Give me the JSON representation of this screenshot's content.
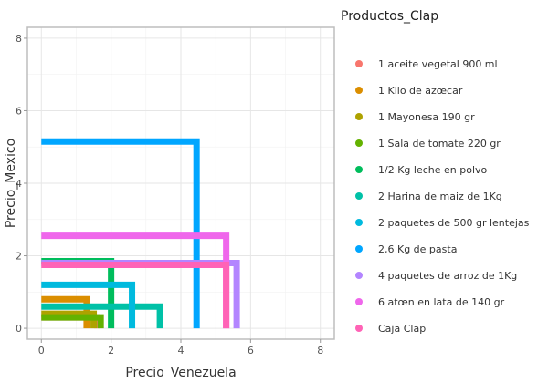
{
  "chart_data": {
    "type": "scatter",
    "subtype": "l-shaped segments (x from 0 to value, drop from y value to 0)",
    "xlabel": "Precio_Venezuela",
    "ylabel": "Precio_Mexico",
    "xlim": [
      -0.4,
      8.4
    ],
    "ylim": [
      -0.3,
      8.3
    ],
    "x_ticks": [
      0,
      2,
      4,
      6,
      8
    ],
    "y_ticks": [
      0,
      2,
      4,
      6,
      8
    ],
    "grid": true,
    "legend_title": "Productos_Clap",
    "legend_position": "right",
    "series": [
      {
        "name": "1 aceite vegetal 900 ml",
        "color": "#F8766D",
        "x": 1.6,
        "y": 0.3
      },
      {
        "name": "1 Kilo de azœcar",
        "color": "#DB8E00",
        "x": 1.3,
        "y": 0.8
      },
      {
        "name": "1 Mayonesa 190 gr",
        "color": "#AEA200",
        "x": 1.5,
        "y": 0.4
      },
      {
        "name": "1 Sala de tomate 220 gr",
        "color": "#64B200",
        "x": 1.7,
        "y": 0.3
      },
      {
        "name": "1/2 Kg leche en polvo",
        "color": "#00BD5C",
        "x": 2.0,
        "y": 1.85
      },
      {
        "name": "2 Harina de maiz de 1Kg",
        "color": "#00C1A7",
        "x": 3.4,
        "y": 0.6
      },
      {
        "name": "2 paquetes de 500 gr lentejas",
        "color": "#00BADE",
        "x": 2.6,
        "y": 1.2
      },
      {
        "name": "2,6 Kg de pasta",
        "color": "#00A6FF",
        "x": 4.45,
        "y": 5.15
      },
      {
        "name": "4 paquetes de arroz de 1Kg",
        "color": "#B385FF",
        "x": 5.6,
        "y": 1.8
      },
      {
        "name": "6 atœn en lata de 140 gr",
        "color": "#EF67EB",
        "x": 5.3,
        "y": 2.55
      },
      {
        "name": "Caja Clap",
        "color": "#FF63B6",
        "x": 5.3,
        "y": 1.75
      }
    ]
  }
}
